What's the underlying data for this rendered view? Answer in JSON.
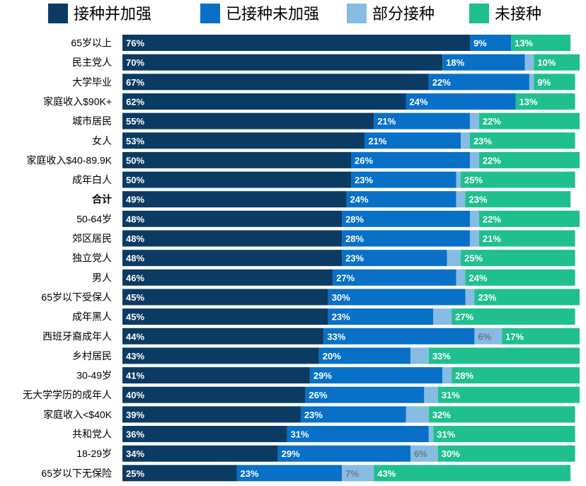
{
  "chart_data": {
    "type": "bar",
    "orientation": "horizontal",
    "stacked": true,
    "legend_position": "top",
    "xlim": [
      0,
      100
    ],
    "colors": {
      "接种并加强": "#0b3b63",
      "已接种未加强": "#0870c7",
      "部分接种": "#86bbe3",
      "未接种": "#1fbf8f"
    },
    "categories": [
      "65岁以上",
      "民主党人",
      "大学毕业",
      "家庭收入$90K+",
      "城市居民",
      "女人",
      "家庭收入$40-89.9K",
      "成年白人",
      "合计",
      "50-64岁",
      "郊区居民",
      "独立党人",
      "男人",
      "65岁以下受保人",
      "成年黑人",
      "西班牙裔成年人",
      "乡村居民",
      "30-49岁",
      "无大学学历的成年人",
      "家庭收入<$40K",
      "共和党人",
      "18-29岁",
      "65岁以下无保险"
    ],
    "bold_categories": [
      "合计"
    ],
    "series": [
      {
        "name": "接种并加强",
        "values": [
          76,
          70,
          67,
          62,
          55,
          53,
          50,
          50,
          49,
          48,
          48,
          48,
          46,
          45,
          45,
          44,
          43,
          41,
          40,
          39,
          36,
          34,
          25
        ]
      },
      {
        "name": "已接种未加强",
        "values": [
          9,
          18,
          22,
          24,
          21,
          21,
          26,
          23,
          24,
          28,
          28,
          23,
          27,
          30,
          23,
          33,
          20,
          29,
          26,
          23,
          31,
          29,
          23
        ]
      },
      {
        "name": "部分接种",
        "values": [
          0,
          2,
          1,
          0,
          2,
          2,
          2,
          1,
          2,
          2,
          2,
          3,
          2,
          2,
          4,
          6,
          4,
          2,
          3,
          5,
          1,
          6,
          7
        ]
      },
      {
        "name": "未接种",
        "values": [
          13,
          10,
          9,
          13,
          22,
          23,
          22,
          25,
          23,
          22,
          21,
          25,
          24,
          23,
          27,
          17,
          33,
          28,
          31,
          32,
          31,
          30,
          43
        ]
      }
    ],
    "labels": [
      [
        "76%",
        "9%",
        "",
        "13%"
      ],
      [
        "70%",
        "18%",
        "",
        "10%"
      ],
      [
        "67%",
        "22%",
        "",
        "9%"
      ],
      [
        "62%",
        "24%",
        "",
        "13%"
      ],
      [
        "55%",
        "21%",
        "",
        "22%"
      ],
      [
        "53%",
        "21%",
        "",
        "23%"
      ],
      [
        "50%",
        "26%",
        "",
        "22%"
      ],
      [
        "50%",
        "23%",
        "",
        "25%"
      ],
      [
        "49%",
        "24%",
        "",
        "23%"
      ],
      [
        "48%",
        "28%",
        "",
        "22%"
      ],
      [
        "48%",
        "28%",
        "",
        "21%"
      ],
      [
        "48%",
        "23%",
        "",
        "25%"
      ],
      [
        "46%",
        "27%",
        "",
        "24%"
      ],
      [
        "45%",
        "30%",
        "",
        "23%"
      ],
      [
        "45%",
        "23%",
        "",
        "27%"
      ],
      [
        "44%",
        "33%",
        "6%",
        "17%"
      ],
      [
        "43%",
        "20%",
        "",
        "33%"
      ],
      [
        "41%",
        "29%",
        "",
        "28%"
      ],
      [
        "40%",
        "26%",
        "",
        "31%"
      ],
      [
        "39%",
        "23%",
        "",
        "32%"
      ],
      [
        "36%",
        "31%",
        "",
        "31%"
      ],
      [
        "34%",
        "29%",
        "6%",
        "30%"
      ],
      [
        "25%",
        "23%",
        "7%",
        "43%"
      ]
    ]
  }
}
